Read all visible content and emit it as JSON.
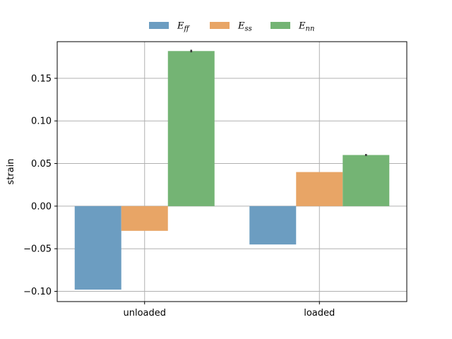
{
  "chart_data": {
    "type": "bar",
    "categories": [
      "unloaded",
      "loaded"
    ],
    "series": [
      {
        "name": "E_ff",
        "label_main": "E",
        "label_sub": "ff",
        "color": "#6c9dc1",
        "values": [
          -0.098,
          -0.045
        ],
        "errors": [
          0,
          0
        ]
      },
      {
        "name": "E_ss",
        "label_main": "E",
        "label_sub": "ss",
        "color": "#e8a566",
        "values": [
          -0.029,
          0.04
        ],
        "errors": [
          0,
          0
        ]
      },
      {
        "name": "E_nn",
        "label_main": "E",
        "label_sub": "nn",
        "color": "#74b474",
        "values": [
          0.182,
          0.06
        ],
        "errors": [
          0.0015,
          0.0012
        ]
      }
    ],
    "ylabel": "strain",
    "xlabel": "",
    "ylim": [
      -0.112,
      0.193
    ],
    "yticks": [
      -0.1,
      -0.05,
      0.0,
      0.05,
      0.1,
      0.15
    ],
    "ytick_labels": [
      "−0.10",
      "−0.05",
      "0.00",
      "0.05",
      "0.10",
      "0.15"
    ],
    "grid": true,
    "legend_position": "top-center"
  }
}
